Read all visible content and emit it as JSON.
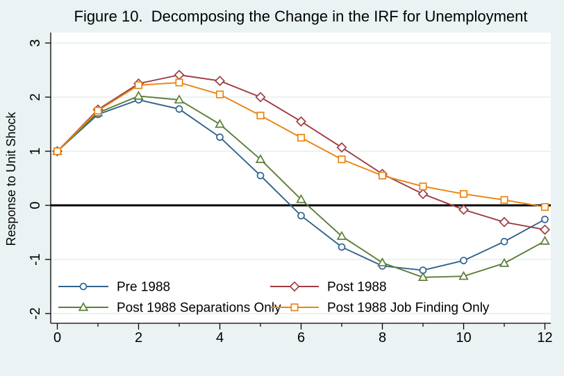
{
  "figure": {
    "title": "Figure 10.  Decomposing the Change in the IRF for Unemployment",
    "title_color": "#1f3a5f",
    "background_color": "#eaf2f3",
    "plot_background": "#ffffff",
    "grid_color": "#dfeaee",
    "axis_color": "#000000",
    "zero_line_color": "#000000"
  },
  "chart_data": {
    "type": "line",
    "title": "Figure 10.  Decomposing the Change in the IRF for Unemployment",
    "xlabel": "",
    "ylabel": "Response to Unit Shock",
    "x": [
      0,
      1,
      2,
      3,
      4,
      5,
      6,
      7,
      8,
      9,
      10,
      11,
      12
    ],
    "xlim": [
      -0.16,
      12.15
    ],
    "ylim": [
      -2.18,
      3.19
    ],
    "yticks": [
      3,
      2,
      1,
      0,
      -1,
      -2
    ],
    "xticks_major": [
      0,
      2,
      4,
      6,
      8,
      10,
      12
    ],
    "xticks_minor": [
      1,
      3,
      5,
      7,
      9,
      11
    ],
    "gridline_values": [
      3,
      2,
      1,
      -1,
      -2
    ],
    "zero_line_at": 0,
    "grid": "horizontal",
    "legend_position": "inside-bottom-left",
    "legend_columns": 2,
    "series": [
      {
        "name": "Pre 1988",
        "marker": "circle",
        "color": "#30638e",
        "values": [
          1.0,
          1.68,
          1.95,
          1.78,
          1.26,
          0.55,
          -0.19,
          -0.77,
          -1.12,
          -1.2,
          -1.02,
          -0.67,
          -0.26
        ]
      },
      {
        "name": "Post 1988",
        "marker": "diamond",
        "color": "#9e3c42",
        "values": [
          1.0,
          1.77,
          2.25,
          2.41,
          2.3,
          2.0,
          1.55,
          1.07,
          0.58,
          0.21,
          -0.08,
          -0.31,
          -0.45
        ]
      },
      {
        "name": "Post 1988 Separations Only",
        "marker": "triangle",
        "color": "#5b7e38",
        "values": [
          1.0,
          1.71,
          2.02,
          1.95,
          1.5,
          0.85,
          0.11,
          -0.57,
          -1.06,
          -1.33,
          -1.31,
          -1.07,
          -0.66
        ]
      },
      {
        "name": "Post 1988 Job Finding Only",
        "marker": "square",
        "color": "#ea840f",
        "values": [
          1.0,
          1.75,
          2.22,
          2.27,
          2.05,
          1.66,
          1.25,
          0.85,
          0.55,
          0.35,
          0.21,
          0.1,
          -0.03
        ]
      }
    ]
  }
}
